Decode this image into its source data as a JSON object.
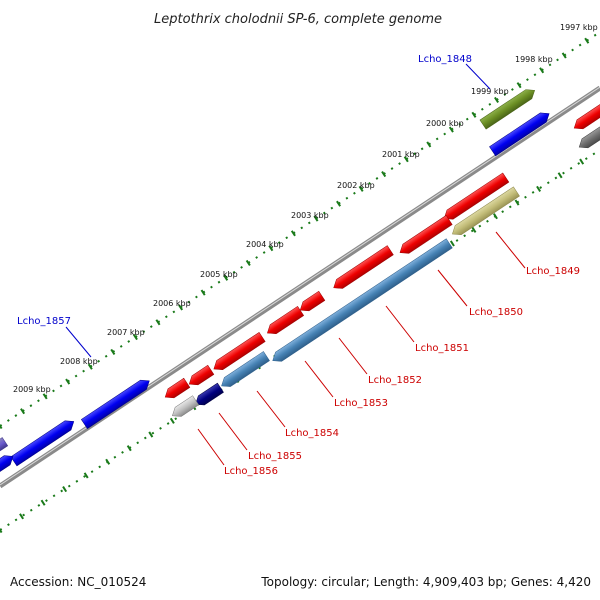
{
  "title": "Leptothrix cholodnii SP-6, complete genome",
  "footer": {
    "accession": "Accession: NC_010524",
    "summary": "Topology: circular; Length: 4,909,403 bp; Genes: 4,420"
  },
  "scale_labels": [
    "1997 kbp",
    "1998 kbp",
    "1999 kbp",
    "2000 kbp",
    "2001 kbp",
    "2002 kbp",
    "2003 kbp",
    "2004 kbp",
    "2005 kbp",
    "2006 kbp",
    "2007 kbp",
    "2008 kbp",
    "2009 kbp"
  ],
  "gene_labels": {
    "lcho_1848": "Lcho_1848",
    "lcho_1849": "Lcho_1849",
    "lcho_1850": "Lcho_1850",
    "lcho_1851": "Lcho_1851",
    "lcho_1852": "Lcho_1852",
    "lcho_1853": "Lcho_1853",
    "lcho_1854": "Lcho_1854",
    "lcho_1855": "Lcho_1855",
    "lcho_1856": "Lcho_1856",
    "lcho_1857": "Lcho_1857"
  },
  "colors": {
    "forward_label": "#0000cc",
    "reverse_label": "#cc0000",
    "backbone": "#888888",
    "tick": "#1a7a1a"
  }
}
